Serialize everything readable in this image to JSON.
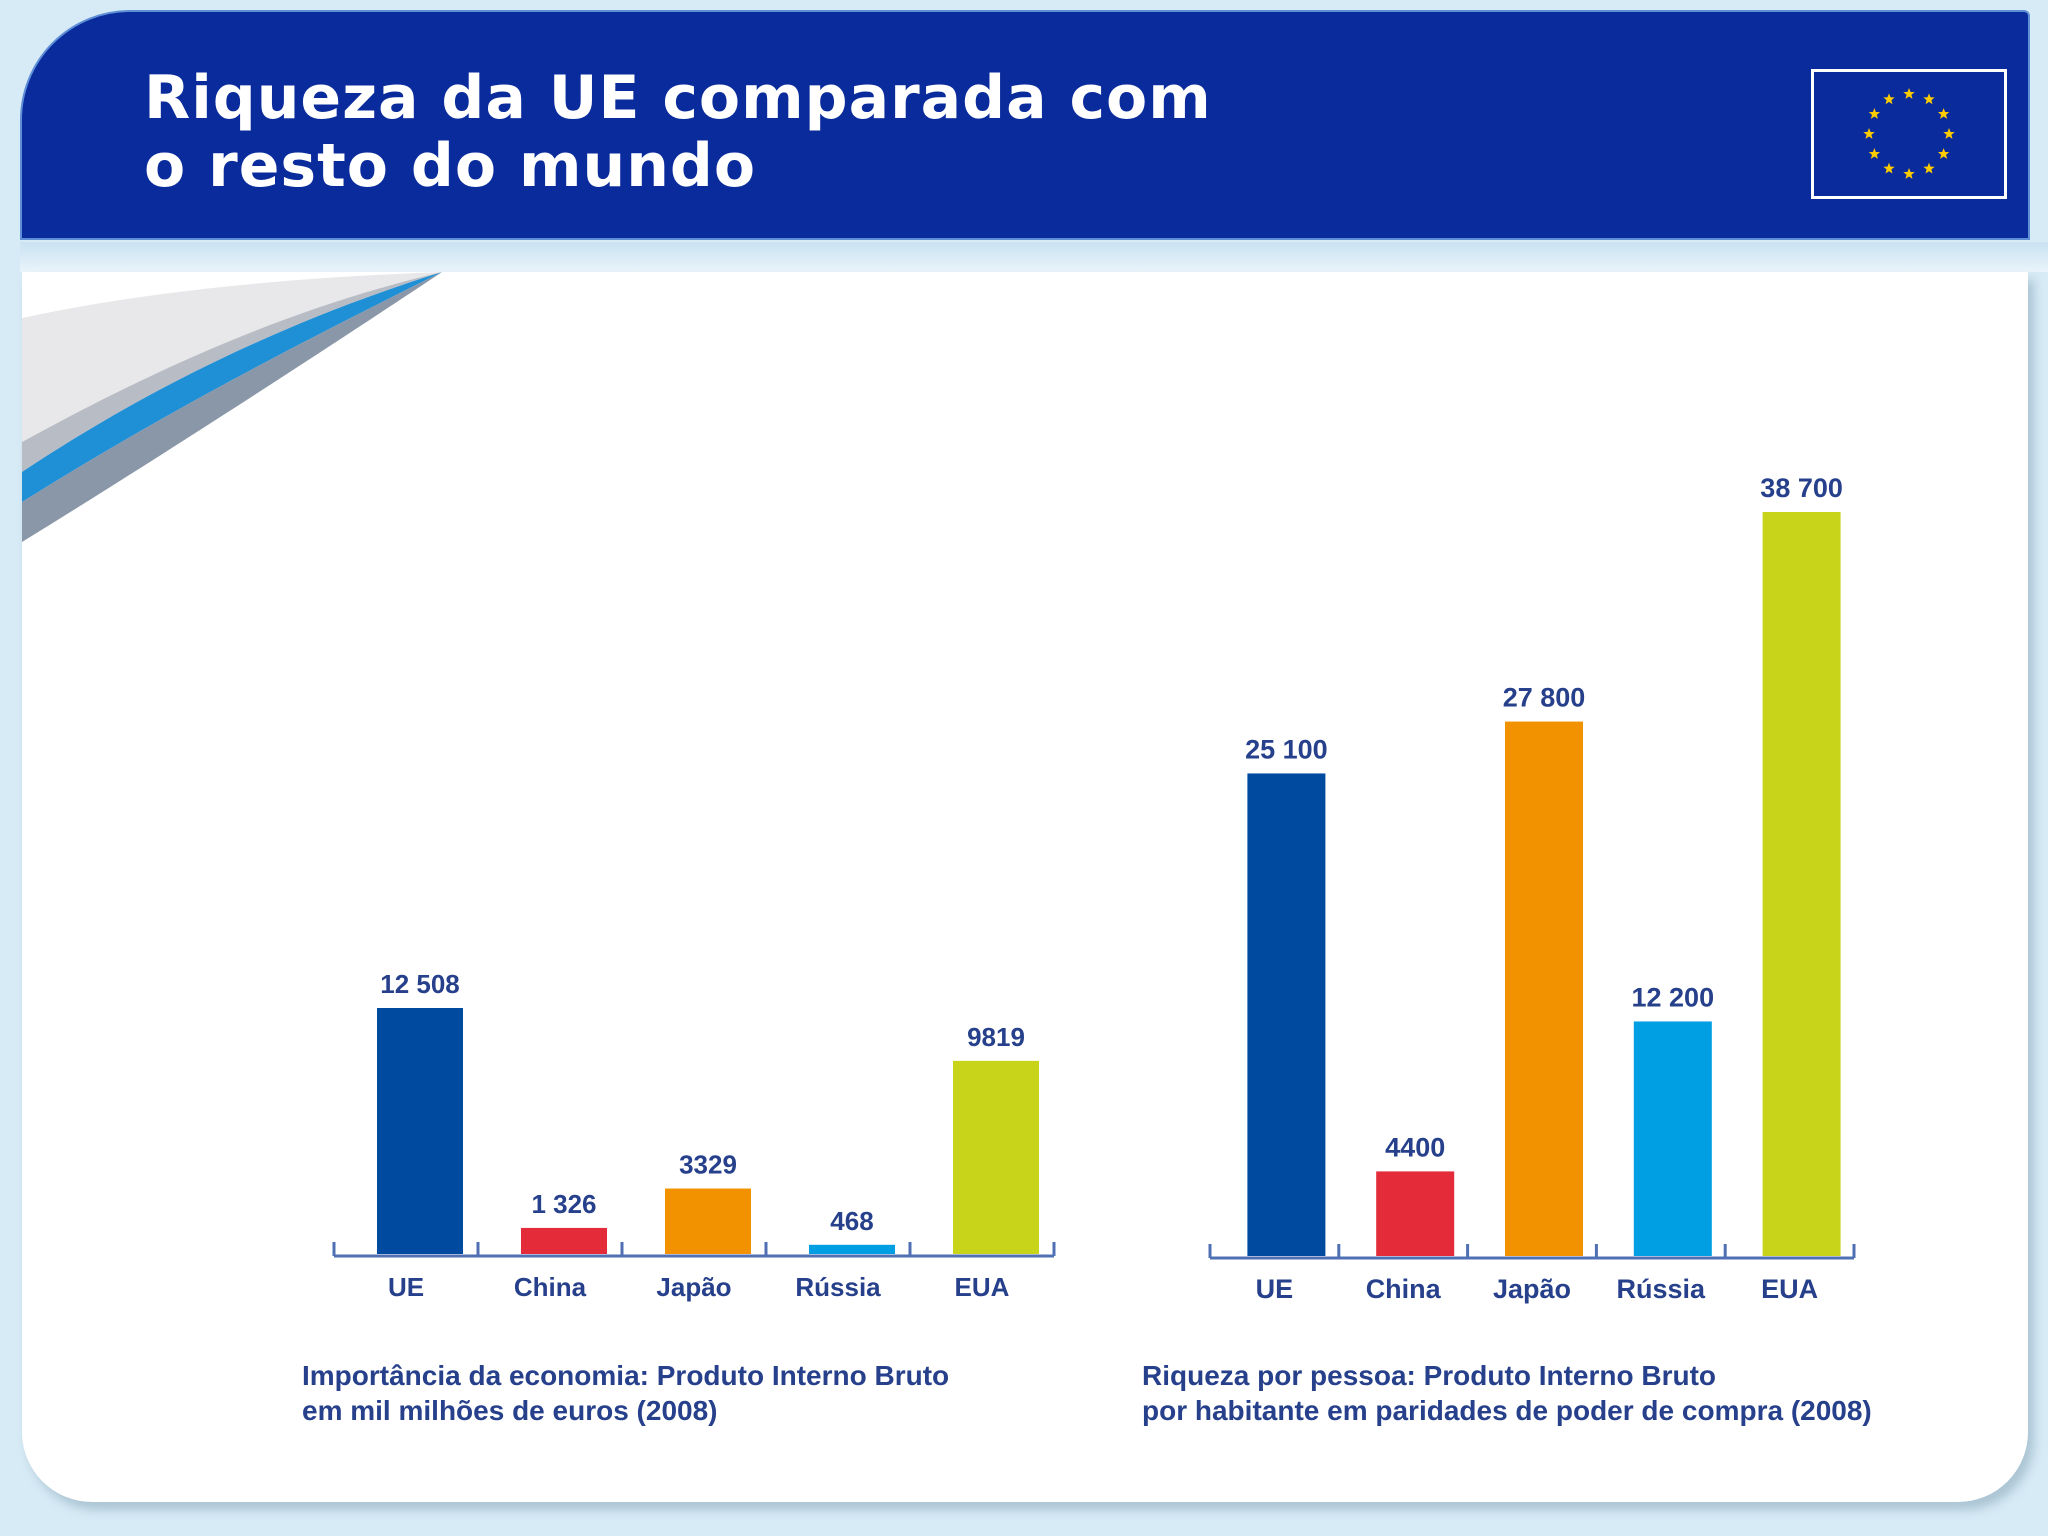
{
  "header": {
    "title_line1": "Riqueza da UE comparada com",
    "title_line2": "o resto do mundo"
  },
  "colors": {
    "UE": "#004a9f",
    "China": "#e32b3a",
    "Japão": "#f39200",
    "Rússia": "#009fe3",
    "EUA": "#c8d41a",
    "axis": "#4f71b4",
    "text": "#27408b"
  },
  "chart_data": [
    {
      "type": "bar",
      "categories": [
        "UE",
        "China",
        "Japão",
        "Rússia",
        "EUA"
      ],
      "values": [
        12508,
        1326,
        3329,
        468,
        9819
      ],
      "value_labels": [
        "12 508",
        "1 326",
        "3329",
        "468",
        "9819"
      ],
      "caption_line1": "Importância da economia: Produto Interno Bruto",
      "caption_line2": "em mil milhões de euros (2008)",
      "grid": false
    },
    {
      "type": "bar",
      "categories": [
        "UE",
        "China",
        "Japão",
        "Rússia",
        "EUA"
      ],
      "values": [
        25100,
        4400,
        27800,
        12200,
        38700
      ],
      "value_labels": [
        "25 100",
        "4400",
        "27 800",
        "12 200",
        "38 700"
      ],
      "caption_line1": "Riqueza por pessoa: Produto Interno Bruto",
      "caption_line2": "por habitante em paridades de poder de compra (2008)",
      "grid": false
    }
  ]
}
